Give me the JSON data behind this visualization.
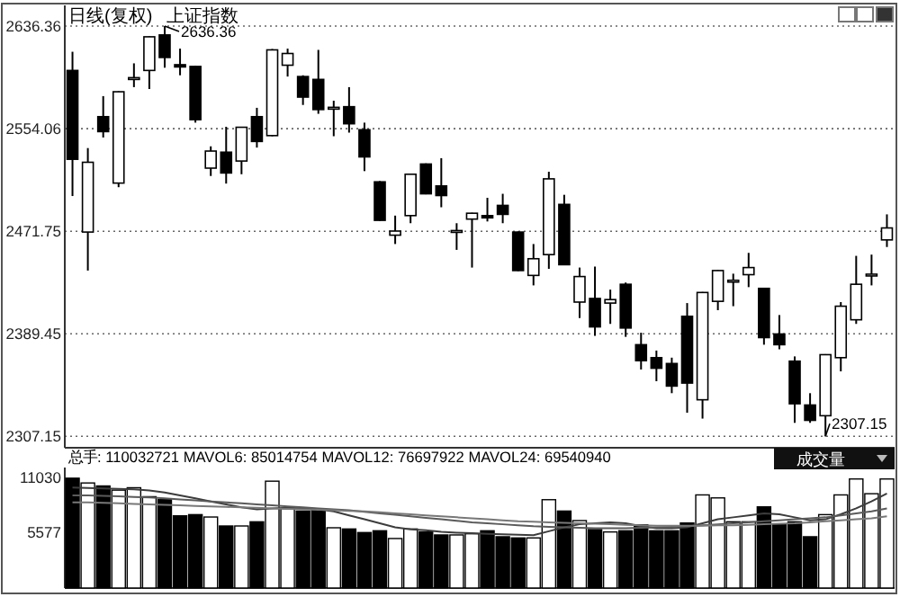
{
  "chart_data": [
    {
      "type": "candlestick",
      "title": "日线(复权)",
      "subtitle": "上证指数",
      "categories": [
        null,
        null,
        null,
        null,
        null,
        null,
        null,
        null,
        null,
        null,
        null,
        null,
        null,
        null,
        null,
        null,
        null,
        null,
        null,
        null,
        null,
        null,
        null,
        null,
        null,
        null,
        null,
        null,
        null,
        null,
        null,
        null,
        null,
        null,
        null,
        null,
        null,
        null,
        null,
        null,
        null,
        null,
        null,
        null,
        null,
        null,
        null,
        null,
        null,
        null,
        null,
        null,
        null,
        null
      ],
      "ohlc": [
        [
          2600.8,
          2615.8,
          2500.0,
          2529.5
        ],
        [
          2471.1,
          2538.5,
          2440.2,
          2527.1
        ],
        [
          2563.7,
          2580.2,
          2547.0,
          2551.7
        ],
        [
          2510.4,
          2584.1,
          2507.1,
          2583.7
        ],
        [
          2594.5,
          2606.5,
          2587.4,
          2595.0
        ],
        [
          2600.8,
          2628.2,
          2585.9,
          2627.8
        ],
        [
          2629.3,
          2636.36,
          2603.0,
          2611.2
        ],
        [
          2605.4,
          2618.3,
          2596.9,
          2603.6
        ],
        [
          2604.0,
          2604.5,
          2558.9,
          2561.3
        ],
        [
          2522.4,
          2539.9,
          2516.1,
          2536.1
        ],
        [
          2535.2,
          2555.6,
          2510.0,
          2518.5
        ],
        [
          2528.1,
          2555.6,
          2517.5,
          2555.2
        ],
        [
          2563.7,
          2570.8,
          2538.9,
          2543.8
        ],
        [
          2548.5,
          2618.0,
          2548.0,
          2617.3
        ],
        [
          2605.0,
          2618.3,
          2595.9,
          2614.4
        ],
        [
          2595.9,
          2596.9,
          2573.1,
          2579.4
        ],
        [
          2593.6,
          2617.3,
          2566.0,
          2569.4
        ],
        [
          2570.8,
          2576.5,
          2548.0,
          2571.2
        ],
        [
          2571.7,
          2587.4,
          2550.9,
          2558.0
        ],
        [
          2553.2,
          2558.9,
          2520.0,
          2531.4
        ],
        [
          2511.4,
          2512.0,
          2480.0,
          2480.5
        ],
        [
          2468.6,
          2484.3,
          2461.5,
          2471.9
        ],
        [
          2484.3,
          2518.0,
          2478.2,
          2517.5
        ],
        [
          2525.7,
          2526.2,
          2501.4,
          2501.8
        ],
        [
          2508.1,
          2530.4,
          2491.0,
          2500.4
        ],
        [
          2471.9,
          2478.2,
          2456.8,
          2472.3
        ],
        [
          2481.5,
          2486.6,
          2442.6,
          2486.2
        ],
        [
          2484.3,
          2498.6,
          2479.6,
          2482.5
        ],
        [
          2492.5,
          2501.8,
          2478.2,
          2485.3
        ],
        [
          2471.1,
          2471.5,
          2439.8,
          2440.2
        ],
        [
          2436.3,
          2461.5,
          2428.3,
          2449.7
        ],
        [
          2453.0,
          2519.5,
          2441.6,
          2513.8
        ],
        [
          2493.3,
          2501.0,
          2444.5,
          2444.9
        ],
        [
          2414.9,
          2442.6,
          2402.1,
          2435.4
        ],
        [
          2417.8,
          2443.4,
          2387.8,
          2395.0
        ],
        [
          2414.1,
          2424.9,
          2397.4,
          2416.9
        ],
        [
          2429.2,
          2430.6,
          2387.0,
          2394.1
        ],
        [
          2380.7,
          2390.3,
          2360.8,
          2367.9
        ],
        [
          2370.3,
          2376.0,
          2351.4,
          2361.8
        ],
        [
          2365.6,
          2370.3,
          2341.8,
          2347.5
        ],
        [
          2403.5,
          2414.1,
          2326.1,
          2349.9
        ],
        [
          2336.5,
          2423.0,
          2321.4,
          2422.6
        ],
        [
          2415.5,
          2440.6,
          2408.4,
          2440.2
        ],
        [
          2432.0,
          2437.7,
          2411.6,
          2432.4
        ],
        [
          2436.9,
          2454.4,
          2426.9,
          2442.6
        ],
        [
          2425.9,
          2426.3,
          2380.7,
          2386.4
        ],
        [
          2389.3,
          2404.5,
          2377.0,
          2380.7
        ],
        [
          2367.5,
          2371.3,
          2318.0,
          2333.3
        ],
        [
          2332.3,
          2341.8,
          2318.0,
          2320.0
        ],
        [
          2323.7,
          2373.1,
          2307.15,
          2372.7
        ],
        [
          2370.3,
          2414.9,
          2359.3,
          2411.6
        ],
        [
          2400.7,
          2452.0,
          2397.4,
          2429.2
        ],
        [
          2436.9,
          2453.0,
          2428.3,
          2437.3
        ],
        [
          2464.8,
          2485.3,
          2459.1,
          2474.4
        ]
      ],
      "ylim": [
        2298,
        2653
      ],
      "yticks": [
        2307.15,
        2389.45,
        2471.75,
        2554.06,
        2636.36
      ],
      "grid": "y",
      "tick_labels": "y",
      "annotations": [
        "2636.36",
        "2307.15"
      ]
    },
    {
      "type": "bar",
      "subtitle": "总手: 110032721 MAVOL6: 85014754 MAVOL12: 76697922 MAVOL24: 69540940",
      "annotations": [
        "成交量"
      ],
      "categories": [
        null,
        null,
        null,
        null,
        null,
        null,
        null,
        null,
        null,
        null,
        null,
        null,
        null,
        null,
        null,
        null,
        null,
        null,
        null,
        null,
        null,
        null,
        null,
        null,
        null,
        null,
        null,
        null,
        null,
        null,
        null,
        null,
        null,
        null,
        null,
        null,
        null,
        null,
        null,
        null,
        null,
        null,
        null,
        null,
        null,
        null,
        null,
        null,
        null,
        null,
        null,
        null,
        null,
        null
      ],
      "series": [
        {
          "type": "bar",
          "values": [
            11030,
            10550,
            10250,
            9830,
            10070,
            9170,
            8870,
            7250,
            7370,
            7130,
            6230,
            6230,
            6650,
            10730,
            7970,
            7730,
            7850,
            6050,
            5930,
            5570,
            5750,
            4970,
            5930,
            5630,
            5330,
            5330,
            5450,
            5750,
            5150,
            5030,
            5030,
            8870,
            7730,
            6770,
            5870,
            5630,
            5750,
            6350,
            5750,
            5750,
            6530,
            9350,
            9050,
            6650,
            6650,
            8150,
            6350,
            6650,
            5150,
            7370,
            9350,
            10950,
            9470,
            10950
          ],
          "colors": [
            "#000000",
            "#ffffff",
            "#000000",
            "#ffffff",
            "#ffffff",
            "#ffffff",
            "#000000",
            "#000000",
            "#000000",
            "#ffffff",
            "#000000",
            "#ffffff",
            "#000000",
            "#ffffff",
            "#ffffff",
            "#000000",
            "#000000",
            "#ffffff",
            "#000000",
            "#000000",
            "#000000",
            "#ffffff",
            "#ffffff",
            "#000000",
            "#000000",
            "#ffffff",
            "#ffffff",
            "#000000",
            "#000000",
            "#000000",
            "#ffffff",
            "#ffffff",
            "#000000",
            "#ffffff",
            "#000000",
            "#ffffff",
            "#000000",
            "#000000",
            "#000000",
            "#000000",
            "#000000",
            "#ffffff",
            "#ffffff",
            "#ffffff",
            "#ffffff",
            "#000000",
            "#000000",
            "#000000",
            "#000000",
            "#ffffff",
            "#ffffff",
            "#ffffff",
            "#ffffff",
            "#ffffff"
          ]
        },
        {
          "type": "line",
          "color": "#3c3c3c",
          "values": [
            10100,
            10050,
            10000,
            9950,
            9900,
            9800,
            9600,
            9300,
            9000,
            8700,
            8400,
            8100,
            7900,
            8000,
            8050,
            8000,
            7900,
            7700,
            7300,
            6900,
            6500,
            6100,
            5900,
            5800,
            5650,
            5550,
            5500,
            5450,
            5400,
            5350,
            5300,
            5700,
            6100,
            6400,
            6500,
            6600,
            6500,
            6200,
            6000,
            6000,
            6100,
            6500,
            6900,
            7100,
            7300,
            7500,
            7400,
            7100,
            6800,
            6900,
            7400,
            8000,
            8700,
            9500
          ]
        },
        {
          "type": "line",
          "color": "#5a5a5a",
          "values": [
            9300,
            9300,
            9250,
            9200,
            9150,
            9100,
            9000,
            8900,
            8800,
            8700,
            8600,
            8500,
            8400,
            8300,
            8200,
            8100,
            8000,
            7900,
            7800,
            7650,
            7500,
            7350,
            7200,
            7050,
            6900,
            6750,
            6600,
            6500,
            6400,
            6300,
            6200,
            6150,
            6100,
            6050,
            6000,
            6000,
            6000,
            6050,
            6100,
            6150,
            6200,
            6300,
            6400,
            6500,
            6600,
            6700,
            6800,
            6900,
            7000,
            7100,
            7300,
            7500,
            7700,
            8000
          ]
        },
        {
          "type": "line",
          "color": "#787878",
          "values": [
            8600,
            8600,
            8550,
            8500,
            8450,
            8400,
            8350,
            8300,
            8250,
            8200,
            8150,
            8100,
            8050,
            8000,
            7950,
            7900,
            7850,
            7800,
            7750,
            7700,
            7600,
            7500,
            7400,
            7300,
            7200,
            7100,
            7000,
            6900,
            6800,
            6700,
            6650,
            6600,
            6550,
            6500,
            6450,
            6400,
            6350,
            6300,
            6250,
            6250,
            6250,
            6250,
            6300,
            6300,
            6350,
            6400,
            6450,
            6500,
            6600,
            6700,
            6800,
            6900,
            7000,
            7200
          ]
        }
      ],
      "ylim": [
        0,
        12100
      ],
      "yticks": [
        5577,
        11030
      ],
      "tick_labels": "y"
    }
  ]
}
